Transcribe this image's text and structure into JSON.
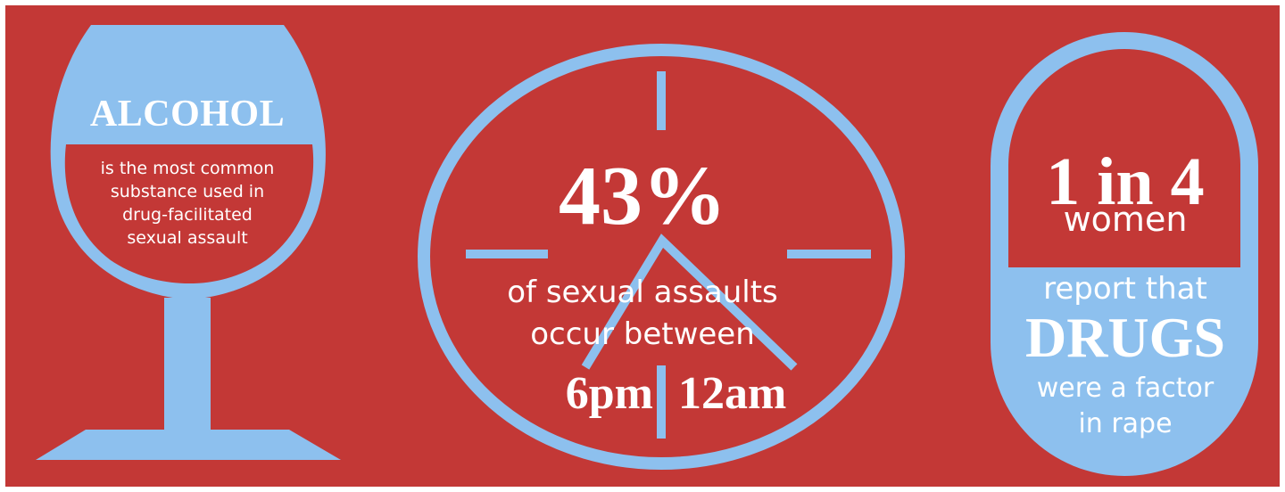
{
  "colors": {
    "background": "#c33836",
    "accent": "#8dc0ee",
    "text_light": "#ffffff"
  },
  "glass": {
    "icon": "wine-glass-icon",
    "headline": "ALCOHOL",
    "caption_lines": [
      "is the most common",
      "substance used in",
      "drug-facilitated",
      "sexual assault"
    ]
  },
  "clock": {
    "icon": "clock-icon",
    "percent": "43%",
    "line1": "of sexual assaults",
    "line2": "occur between",
    "start_time": "6pm",
    "end_time": "12am"
  },
  "pill": {
    "icon": "capsule-icon",
    "ratio": "1 in 4",
    "group": "women",
    "line1": "report that",
    "emphasis": "DRUGS",
    "line2": "were a factor",
    "line3": "in rape"
  }
}
